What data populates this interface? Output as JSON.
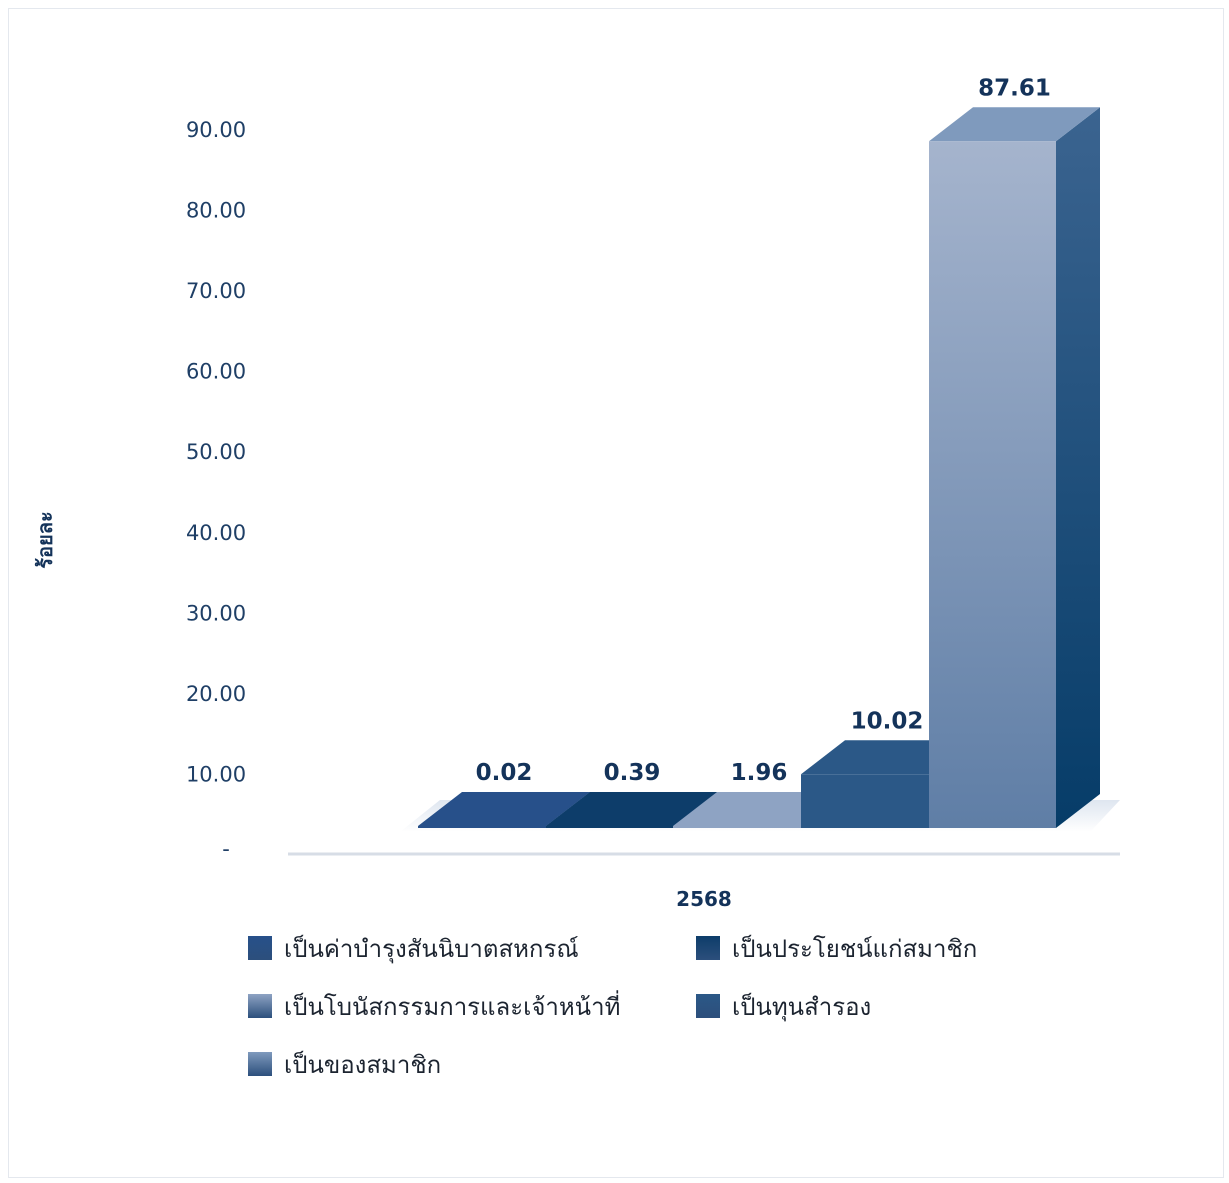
{
  "chart_data": {
    "type": "bar",
    "ylabel": "ร้อยละ",
    "categories": [
      "2568"
    ],
    "y_ticks": [
      "-",
      "10.00",
      "20.00",
      "30.00",
      "40.00",
      "50.00",
      "60.00",
      "70.00",
      "80.00",
      "90.00"
    ],
    "ylim": [
      0,
      90
    ],
    "series": [
      {
        "name": "เป็นค่าบำรุงสันนิบาตสหกรณ์",
        "values": [
          0.02
        ],
        "label": "0.02",
        "color": "#27508a"
      },
      {
        "name": "เป็นประโยชน์แก่สมาชิก",
        "values": [
          0.39
        ],
        "label": "0.39",
        "color": "#0d3d6a"
      },
      {
        "name": "เป็นโบนัสกรรมการและเจ้าหน้าที่",
        "values": [
          1.96
        ],
        "label": "1.96",
        "color": "#8ea3c3"
      },
      {
        "name": "เป็นทุนสำรอง",
        "values": [
          10.02
        ],
        "label": "10.02",
        "color": "#2b5887"
      },
      {
        "name": "เป็นของสมาชิก",
        "values": [
          87.61
        ],
        "label": "87.61",
        "color": "#7f9abd"
      }
    ],
    "legend_position": "bottom",
    "grid": false,
    "style": "3d-bar"
  }
}
